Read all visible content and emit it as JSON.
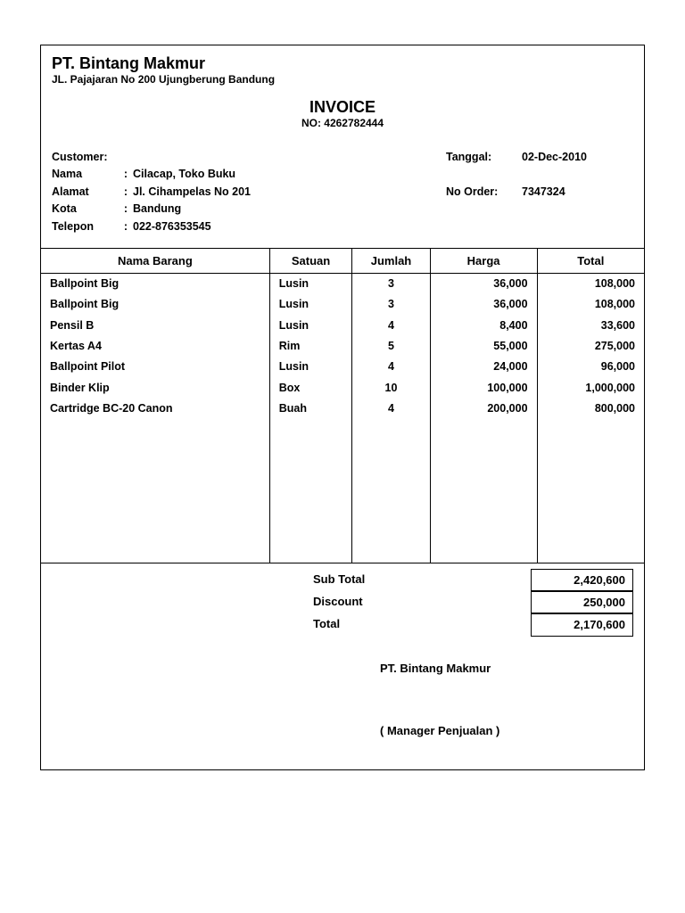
{
  "company": {
    "name": "PT. Bintang Makmur",
    "address": "JL. Pajajaran No 200 Ujungberung Bandung"
  },
  "invoice": {
    "title": "INVOICE",
    "number_label": "NO: 4262782444"
  },
  "customer": {
    "heading": "Customer:",
    "rows": [
      {
        "label": "Nama",
        "value": "Cilacap, Toko Buku"
      },
      {
        "label": "Alamat",
        "value": "Jl. Cihampelas No 201"
      },
      {
        "label": "Kota",
        "value": "Bandung"
      },
      {
        "label": "Telepon",
        "value": "022-876353545"
      }
    ]
  },
  "order": {
    "date_label": "Tanggal:",
    "date_value": "02-Dec-2010",
    "no_label": "No Order:",
    "no_value": "7347324"
  },
  "columns": {
    "nama": "Nama Barang",
    "satuan": "Satuan",
    "jumlah": "Jumlah",
    "harga": "Harga",
    "total": "Total"
  },
  "items": [
    {
      "nama": "Ballpoint Big",
      "satuan": "Lusin",
      "jumlah": "3",
      "harga": "36,000",
      "total": "108,000"
    },
    {
      "nama": "Ballpoint Big",
      "satuan": "Lusin",
      "jumlah": "3",
      "harga": "36,000",
      "total": "108,000"
    },
    {
      "nama": "Pensil B",
      "satuan": "Lusin",
      "jumlah": "4",
      "harga": "8,400",
      "total": "33,600"
    },
    {
      "nama": "Kertas A4",
      "satuan": "Rim",
      "jumlah": "5",
      "harga": "55,000",
      "total": "275,000"
    },
    {
      "nama": "Ballpoint Pilot",
      "satuan": "Lusin",
      "jumlah": "4",
      "harga": "24,000",
      "total": "96,000"
    },
    {
      "nama": "Binder Klip",
      "satuan": "Box",
      "jumlah": "10",
      "harga": "100,000",
      "total": "1,000,000"
    },
    {
      "nama": "Cartridge BC-20 Canon",
      "satuan": "Buah",
      "jumlah": "4",
      "harga": "200,000",
      "total": "800,000"
    }
  ],
  "totals": {
    "subtotal_label": "Sub Total",
    "subtotal_value": "2,420,600",
    "discount_label": "Discount",
    "discount_value": "250,000",
    "total_label": "Total",
    "total_value": "2,170,600"
  },
  "signature": {
    "company": "PT. Bintang Makmur",
    "role": "( Manager Penjualan )"
  },
  "style": {
    "font_family": "Arial",
    "text_color": "#000000",
    "background_color": "#ffffff",
    "border_color": "#000000",
    "font_size_body_pt": 10,
    "font_size_title_pt": 14,
    "font_weight": "bold"
  }
}
